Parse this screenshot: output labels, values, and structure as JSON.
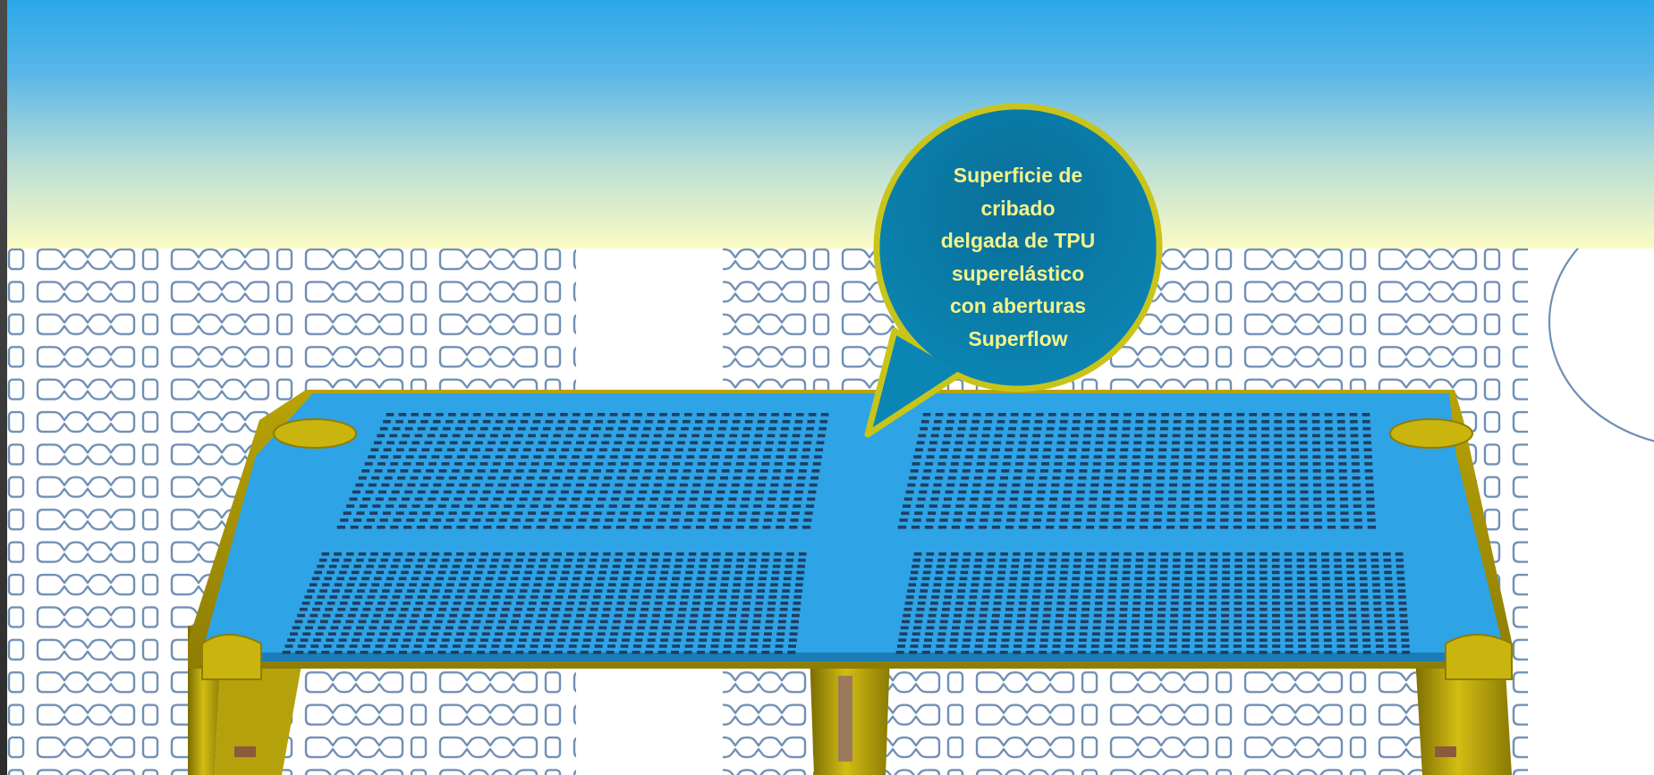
{
  "callout": {
    "text": "Superficie de\ncribado\ndelgada de TPU\nsuperelástico\ncon aberturas\nSuperflow"
  },
  "colors": {
    "header_top": "#2aa8e8",
    "header_bottom": "#fbfbc4",
    "panel_surface": "#2ea3e6",
    "panel_frame": "#c8b20a",
    "slot": "#1e3f62",
    "callout_fill": "#0b7aa8",
    "callout_border": "#c9c41a",
    "callout_text": "#f4f38a",
    "pattern_stroke": "#6f8fb5"
  },
  "icons": {
    "background": "chain-link-pattern",
    "callout": "speech-bubble",
    "product": "screen-panel"
  }
}
